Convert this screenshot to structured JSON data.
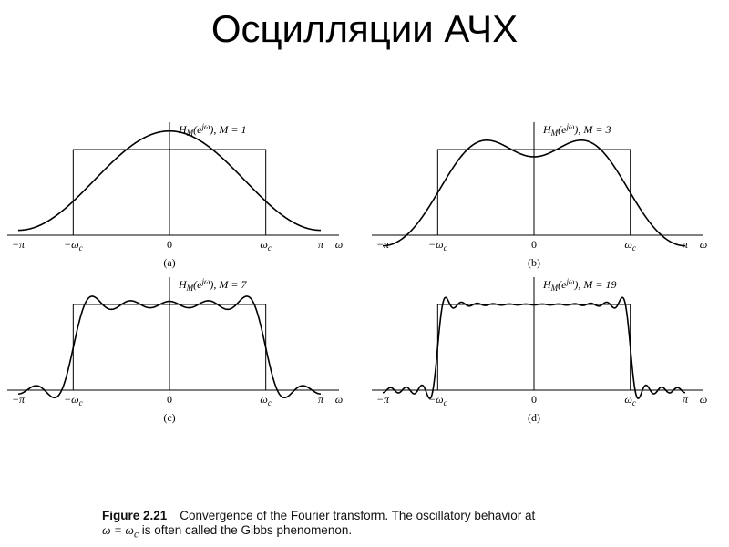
{
  "slide": {
    "title": "Осцилляции АЧХ"
  },
  "figure": {
    "label": "Figure 2.21",
    "caption_line1": "Convergence of the Fourier transform. The oscillatory behavior at",
    "caption_line2_math": "ω = ω",
    "caption_line2_sub": "c",
    "caption_line2_text": " is often called the Gibbs phenomenon."
  },
  "chart_data": [
    {
      "type": "line",
      "panel_label": "(a)",
      "ylabel": "H_M(e^{jω}), M = 1",
      "ylabel_main": "H",
      "ylabel_sub": "M",
      "ylabel_arg": "(e",
      "ylabel_sup": "jω",
      "ylabel_rest": "), M = 1",
      "xlabel": "ω",
      "x_tick_labels": [
        "−π",
        "−ω_c",
        "0",
        "ω_c",
        "π"
      ],
      "xlim": [
        -3.1416,
        3.1416
      ],
      "ylim": [
        -0.25,
        1.15
      ],
      "series": [
        {
          "kind": "ideal",
          "x": [
            -3.1416,
            -2.0,
            -2.0,
            2.0,
            2.0,
            3.1416
          ],
          "y": [
            0,
            0,
            1,
            1,
            0,
            0
          ]
        },
        {
          "kind": "approx",
          "M": 1,
          "cutoff": 2.0
        }
      ]
    },
    {
      "type": "line",
      "panel_label": "(b)",
      "ylabel": "H_M(e^{jω}), M = 3",
      "ylabel_main": "H",
      "ylabel_sub": "M",
      "ylabel_arg": "(e",
      "ylabel_sup": "jω",
      "ylabel_rest": "), M = 3",
      "xlabel": "ω",
      "x_tick_labels": [
        "−π",
        "−ω_c",
        "0",
        "ω_c",
        "π"
      ],
      "xlim": [
        -3.1416,
        3.1416
      ],
      "ylim": [
        -0.25,
        1.15
      ],
      "series": [
        {
          "kind": "ideal",
          "x": [
            -3.1416,
            -2.0,
            -2.0,
            2.0,
            2.0,
            3.1416
          ],
          "y": [
            0,
            0,
            1,
            1,
            0,
            0
          ]
        },
        {
          "kind": "approx",
          "M": 3,
          "cutoff": 2.0
        }
      ]
    },
    {
      "type": "line",
      "panel_label": "(c)",
      "ylabel": "H_M(e^{jω}), M = 7",
      "ylabel_main": "H",
      "ylabel_sub": "M",
      "ylabel_arg": "(e",
      "ylabel_sup": "jω",
      "ylabel_rest": "), M = 7",
      "xlabel": "ω",
      "x_tick_labels": [
        "−π",
        "−ω_c",
        "0",
        "ω_c",
        "π"
      ],
      "xlim": [
        -3.1416,
        3.1416
      ],
      "ylim": [
        -0.25,
        1.15
      ],
      "series": [
        {
          "kind": "ideal",
          "x": [
            -3.1416,
            -2.0,
            -2.0,
            2.0,
            2.0,
            3.1416
          ],
          "y": [
            0,
            0,
            1,
            1,
            0,
            0
          ]
        },
        {
          "kind": "approx",
          "M": 7,
          "cutoff": 2.0
        }
      ]
    },
    {
      "type": "line",
      "panel_label": "(d)",
      "ylabel": "H_M(e^{jω}), M = 19",
      "ylabel_main": "H",
      "ylabel_sub": "M",
      "ylabel_arg": "(e",
      "ylabel_sup": "jω",
      "ylabel_rest": "), M = 19",
      "xlabel": "ω",
      "x_tick_labels": [
        "−π",
        "−ω_c",
        "0",
        "ω_c",
        "π"
      ],
      "xlim": [
        -3.1416,
        3.1416
      ],
      "ylim": [
        -0.25,
        1.15
      ],
      "series": [
        {
          "kind": "ideal",
          "x": [
            -3.1416,
            -2.0,
            -2.0,
            2.0,
            2.0,
            3.1416
          ],
          "y": [
            0,
            0,
            1,
            1,
            0,
            0
          ]
        },
        {
          "kind": "approx",
          "M": 19,
          "cutoff": 2.0
        }
      ]
    }
  ]
}
